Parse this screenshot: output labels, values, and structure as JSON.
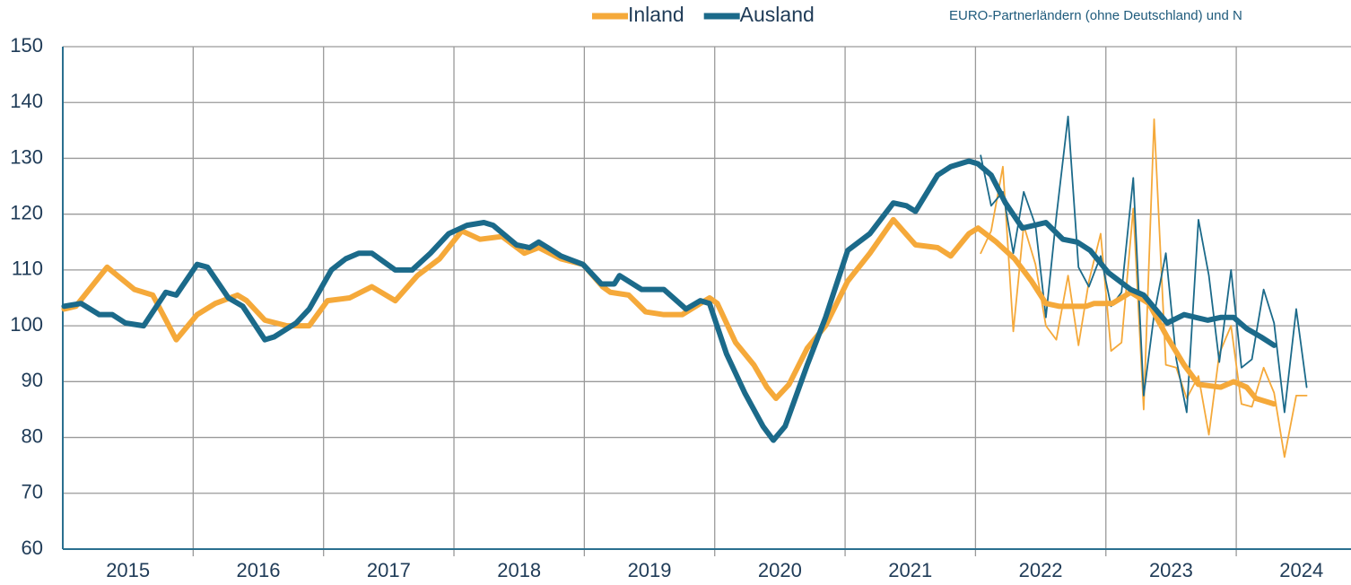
{
  "chart_data": {
    "type": "line",
    "annotation": "EURO-Partnerländern (ohne Deutschland) und N",
    "categories": [
      "2015",
      "2016",
      "2017",
      "2018",
      "2019",
      "2020",
      "2021",
      "2022",
      "2023",
      "2024"
    ],
    "xlim": [
      2015,
      2024.88
    ],
    "xticks": [
      2016,
      2017,
      2018,
      2019,
      2020,
      2021,
      2022,
      2023,
      2024
    ],
    "ylim": [
      60,
      150
    ],
    "yticks": [
      60,
      70,
      80,
      90,
      100,
      110,
      120,
      130,
      140,
      150
    ],
    "grid": true,
    "legend": "top",
    "series": [
      {
        "name": "Inland",
        "color": "#f5a93a",
        "weight": "thick",
        "x": [
          2015.01,
          2015.1,
          2015.34,
          2015.55,
          2015.69,
          2015.87,
          2016.03,
          2016.17,
          2016.34,
          2016.41,
          2016.55,
          2016.72,
          2016.89,
          2017.03,
          2017.2,
          2017.37,
          2017.55,
          2017.72,
          2017.89,
          2018.06,
          2018.2,
          2018.37,
          2018.54,
          2018.65,
          2018.82,
          2018.99,
          2019.14,
          2019.2,
          2019.34,
          2019.47,
          2019.61,
          2019.75,
          2019.96,
          2020.02,
          2020.16,
          2020.3,
          2020.4,
          2020.47,
          2020.57,
          2020.71,
          2020.85,
          2021.02,
          2021.19,
          2021.37,
          2021.54,
          2021.71,
          2021.81,
          2021.95,
          2022.02,
          2022.16,
          2022.3,
          2022.43,
          2022.54,
          2022.64,
          2022.85,
          2022.91,
          2023.05,
          2023.19,
          2023.33,
          2023.47,
          2023.6,
          2023.71,
          2023.88,
          2023.98,
          2024.08,
          2024.15,
          2024.29
        ],
        "values": [
          103,
          103.5,
          110.5,
          106.5,
          105.5,
          97.5,
          102,
          104,
          105.5,
          104.5,
          101,
          100,
          100,
          104.5,
          105,
          107,
          104.5,
          109,
          112,
          117,
          115.5,
          116,
          113,
          114,
          112,
          111,
          107,
          106,
          105.5,
          102.5,
          102,
          102,
          105,
          104,
          97,
          93,
          89,
          87,
          89.5,
          96,
          100,
          108,
          113,
          119,
          114.5,
          114,
          112.5,
          116.5,
          117.5,
          115,
          112,
          108,
          104,
          103.5,
          103.5,
          104,
          104,
          106,
          104,
          98,
          93,
          89.5,
          89,
          90,
          89,
          87,
          86
        ]
      },
      {
        "name": "Ausland",
        "color": "#1b6a8a",
        "weight": "thick",
        "x": [
          2015.01,
          2015.14,
          2015.28,
          2015.38,
          2015.48,
          2015.62,
          2015.79,
          2015.87,
          2016.03,
          2016.11,
          2016.27,
          2016.38,
          2016.55,
          2016.62,
          2016.79,
          2016.89,
          2017.06,
          2017.17,
          2017.27,
          2017.37,
          2017.55,
          2017.68,
          2017.82,
          2017.96,
          2018.1,
          2018.23,
          2018.3,
          2018.48,
          2018.58,
          2018.65,
          2018.72,
          2018.82,
          2018.99,
          2019.13,
          2019.23,
          2019.27,
          2019.44,
          2019.61,
          2019.78,
          2019.89,
          2019.96,
          2020.09,
          2020.23,
          2020.37,
          2020.45,
          2020.54,
          2020.71,
          2020.85,
          2021.02,
          2021.19,
          2021.37,
          2021.47,
          2021.54,
          2021.71,
          2021.81,
          2021.95,
          2022.02,
          2022.12,
          2022.23,
          2022.36,
          2022.54,
          2022.67,
          2022.78,
          2022.88,
          2023.02,
          2023.19,
          2023.29,
          2023.47,
          2023.6,
          2023.78,
          2023.88,
          2023.98,
          2024.08,
          2024.19,
          2024.29
        ],
        "values": [
          103.5,
          104,
          102,
          102,
          100.5,
          100,
          106,
          105.5,
          111,
          110.5,
          105,
          103.5,
          97.5,
          98,
          100.5,
          103,
          110,
          112,
          113,
          113,
          110,
          110,
          113,
          116.5,
          118,
          118.5,
          118,
          114.5,
          114,
          115,
          114,
          112.5,
          111,
          107.5,
          107.5,
          109,
          106.5,
          106.5,
          103,
          104.5,
          104,
          95,
          88,
          82,
          79.5,
          82,
          93,
          101.5,
          113.5,
          116.5,
          122,
          121.5,
          120.5,
          127,
          128.5,
          129.5,
          129,
          127,
          122,
          117.5,
          118.5,
          115.5,
          115,
          113.5,
          109.5,
          106.5,
          105.5,
          100.5,
          102,
          101,
          101.5,
          101.5,
          99.5,
          98,
          96.5
        ]
      },
      {
        "color": "#f5a93a",
        "weight": "thin",
        "x": [
          2022.04,
          2022.12,
          2022.21,
          2022.29,
          2022.37,
          2022.46,
          2022.54,
          2022.62,
          2022.71,
          2022.79,
          2022.87,
          2022.96,
          2023.04,
          2023.12,
          2023.21,
          2023.29,
          2023.37,
          2023.46,
          2023.54,
          2023.62,
          2023.71,
          2023.79,
          2023.87,
          2023.96,
          2024.04,
          2024.12,
          2024.21,
          2024.29,
          2024.37,
          2024.46,
          2024.54
        ],
        "values": [
          113,
          117,
          128.5,
          99,
          118,
          111,
          100,
          97.5,
          109,
          96.5,
          108,
          116.5,
          95.5,
          97,
          121,
          85,
          137,
          93,
          92.5,
          87,
          91,
          80.5,
          95,
          100,
          86,
          85.5,
          92.5,
          88,
          76.5,
          87.5,
          87.5
        ]
      },
      {
        "color": "#1b6a8a",
        "weight": "thin",
        "x": [
          2022.04,
          2022.12,
          2022.21,
          2022.29,
          2022.37,
          2022.46,
          2022.54,
          2022.62,
          2022.71,
          2022.79,
          2022.87,
          2022.96,
          2023.04,
          2023.12,
          2023.21,
          2023.29,
          2023.37,
          2023.46,
          2023.54,
          2023.62,
          2023.71,
          2023.79,
          2023.87,
          2023.96,
          2024.04,
          2024.12,
          2024.21,
          2024.29,
          2024.37,
          2024.46,
          2024.54
        ],
        "values": [
          130.5,
          121.5,
          124,
          113,
          124,
          118,
          101.5,
          119.5,
          137.5,
          110.5,
          107,
          112.5,
          103.5,
          106,
          126.5,
          87.5,
          102,
          113,
          94,
          84.5,
          119,
          109,
          93.5,
          110,
          92.5,
          94,
          106.5,
          100.5,
          84.5,
          103,
          89
        ]
      }
    ]
  }
}
